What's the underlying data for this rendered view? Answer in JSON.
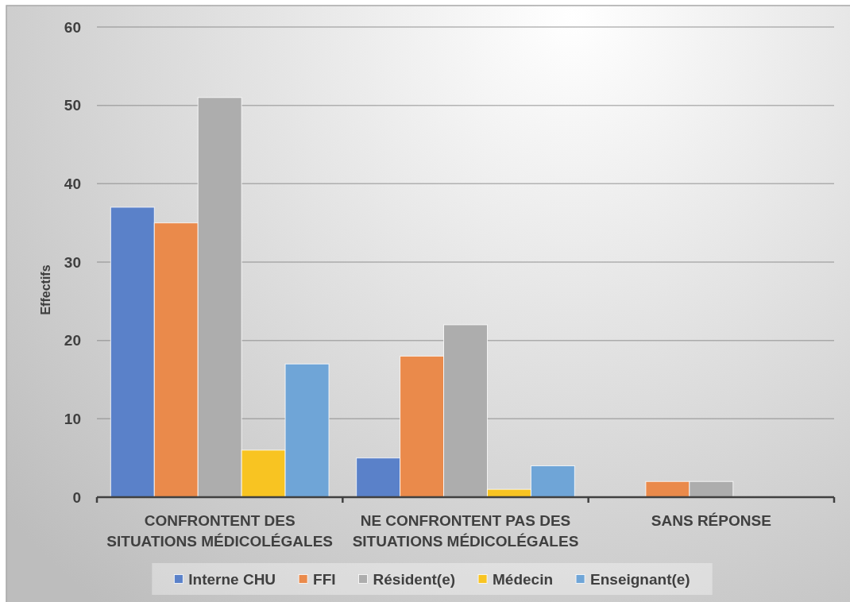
{
  "chart_data": {
    "type": "bar",
    "ylabel": "Effectifs",
    "categories": [
      "CONFRONTENT DES SITUATIONS MÉDICOLÉGALES",
      "NE CONFRONTENT PAS DES SITUATIONS MÉDICOLÉGALES",
      "SANS RÉPONSE"
    ],
    "series": [
      {
        "name": "Interne CHU",
        "color": "#5a81c9",
        "values": [
          37,
          5,
          0
        ]
      },
      {
        "name": "FFI",
        "color": "#ea8a4b",
        "values": [
          35,
          18,
          2
        ]
      },
      {
        "name": "Résident(e)",
        "color": "#adadad",
        "values": [
          51,
          22,
          2
        ]
      },
      {
        "name": "Médecin",
        "color": "#f8c422",
        "values": [
          6,
          1,
          0
        ]
      },
      {
        "name": "Enseignant(e)",
        "color": "#6fa5d7",
        "values": [
          17,
          4,
          0
        ]
      }
    ],
    "ylim": [
      0,
      60
    ],
    "yticks": [
      0,
      10,
      20,
      30,
      40,
      50,
      60
    ],
    "grid": "y",
    "legend": "bottom"
  }
}
